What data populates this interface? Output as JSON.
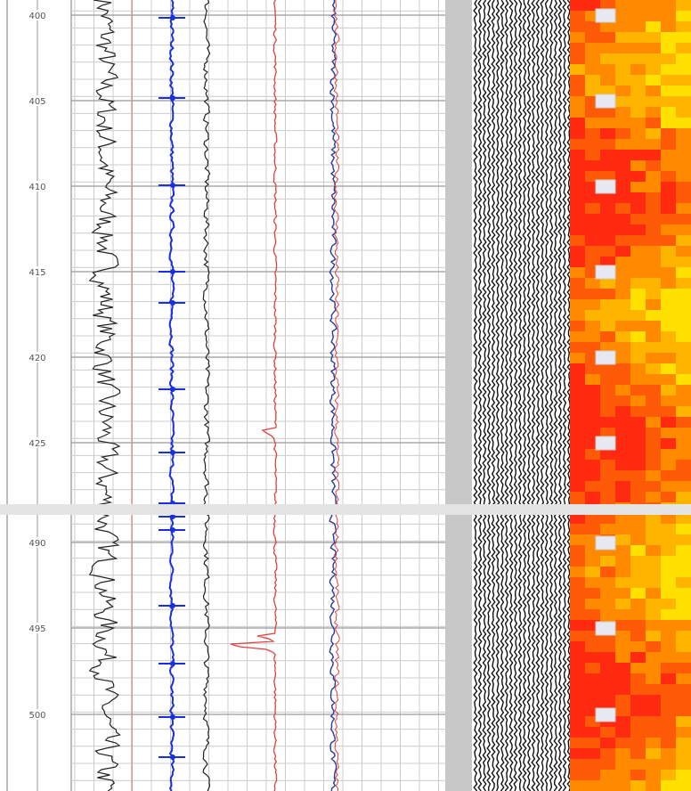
{
  "chart_data": {
    "type": "line",
    "title": "",
    "ylabel": "",
    "depth_sections": [
      {
        "tick_labels": [
          "400",
          "405",
          "410",
          "415",
          "420",
          "425"
        ]
      },
      {
        "tick_labels": [
          "490",
          "495",
          "500"
        ]
      }
    ],
    "tracks": [
      {
        "kind": "curve",
        "color": "#222222"
      },
      {
        "kind": "curve",
        "color": "#e04040"
      },
      {
        "kind": "curve with tick marks",
        "color": "#1a2fe0"
      },
      {
        "kind": "curve",
        "color": "#222222"
      },
      {
        "kind": "curve",
        "color": "#e04040"
      },
      {
        "kind": "curves",
        "colors": [
          "#2a3a9a",
          "#e04040"
        ]
      },
      {
        "kind": "waveform",
        "color": "#111111"
      },
      {
        "kind": "image heatmap",
        "colors": [
          "#ff2a10",
          "#ff8a00",
          "#ffe800"
        ]
      }
    ],
    "grid": true
  }
}
